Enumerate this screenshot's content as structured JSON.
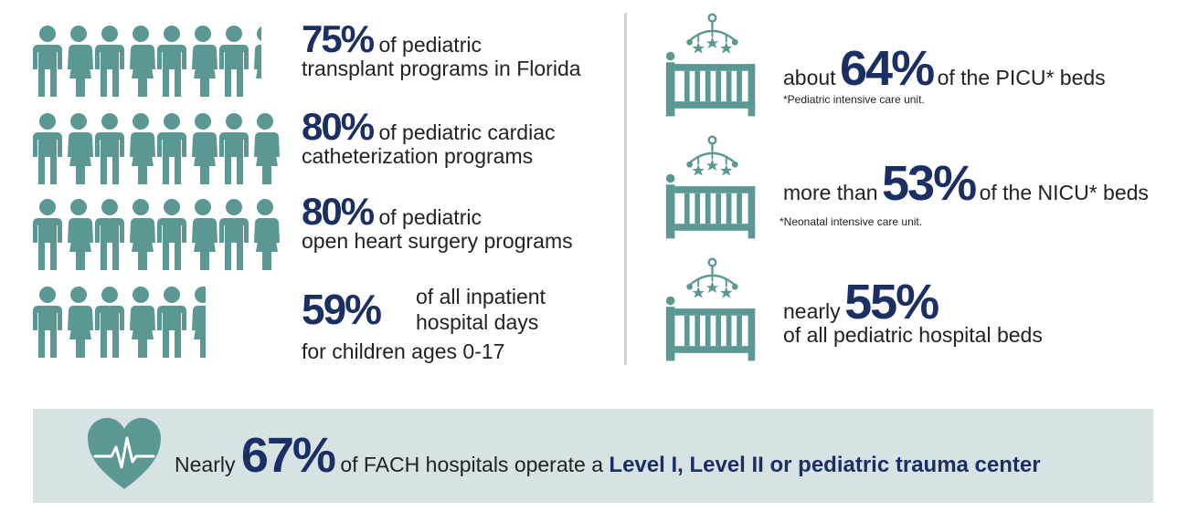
{
  "left_stats": [
    {
      "percent": "75%",
      "line1": "of pediatric",
      "line2": "transplant programs in Florida"
    },
    {
      "percent": "80%",
      "line1": "of pediatric cardiac",
      "line2": "catheterization programs"
    },
    {
      "percent": "80%",
      "line1": "of pediatric",
      "line2": "open heart surgery programs"
    },
    {
      "percent": "59%",
      "line1a": "of all inpatient",
      "line1b": "hospital days",
      "line2": "for children ages 0-17"
    }
  ],
  "right_stats": [
    {
      "prefix": "about",
      "percent": "64%",
      "suffix": "of the PICU* beds",
      "note": "*Pediatric intensive care unit."
    },
    {
      "prefix": "more than",
      "percent": "53%",
      "suffix": "of the NICU* beds",
      "note": "*Neonatal intensive care unit."
    },
    {
      "prefix": "nearly",
      "percent": "55%",
      "suffix": "of all pediatric hospital beds"
    }
  ],
  "footer": {
    "prefix": "Nearly",
    "percent": "67%",
    "middle": "of FACH hospitals operate a",
    "emphasis": "Level I, Level II or pediatric trauma center"
  },
  "icons": {
    "person": "person-icon",
    "crib": "crib-icon",
    "heart": "heartbeat-icon"
  },
  "colors": {
    "teal": "#5b9894",
    "navy": "#1c2f63",
    "band": "#d6e2e3"
  }
}
